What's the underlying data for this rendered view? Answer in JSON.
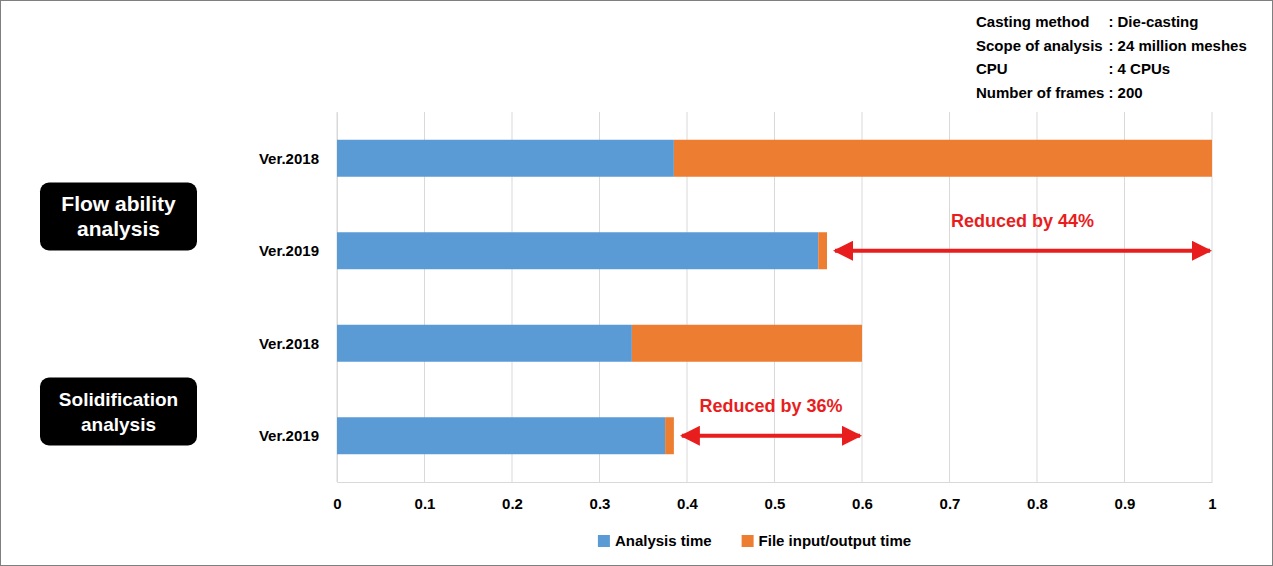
{
  "chart_data": {
    "type": "bar",
    "orientation": "horizontal",
    "stacked": true,
    "grid": true,
    "legend": "bottom",
    "categories": [
      "Ver.2018",
      "Ver.2019",
      "Ver.2018",
      "Ver.2019"
    ],
    "series": [
      {
        "name": "Analysis time",
        "color": "#5b9bd5",
        "values": [
          0.385,
          0.55,
          0.337,
          0.375
        ]
      },
      {
        "name": "File input/output time",
        "color": "#ed7d31",
        "values": [
          0.615,
          0.01,
          0.263,
          0.01
        ]
      }
    ],
    "xlim": [
      0,
      1
    ],
    "xticks": [
      0,
      0.1,
      0.2,
      0.3,
      0.4,
      0.5,
      0.6,
      0.7,
      0.8,
      0.9,
      1
    ],
    "groups": [
      {
        "label": [
          "Flow ability",
          "analysis"
        ]
      },
      {
        "label": [
          "Solidification",
          "analysis"
        ]
      }
    ],
    "annotations": [
      {
        "text": "Reduced by 44%",
        "color": "#e81e1e"
      },
      {
        "text": "Reduced by 36%",
        "color": "#e81e1e"
      }
    ],
    "notes": [
      {
        "label": "Casting method",
        "value": ": Die-casting"
      },
      {
        "label": "Scope of analysis",
        "value": ": 24 million meshes"
      },
      {
        "label": "CPU",
        "value": ": 4 CPUs"
      },
      {
        "label": "Number of frames",
        "value": ": 200"
      }
    ]
  }
}
